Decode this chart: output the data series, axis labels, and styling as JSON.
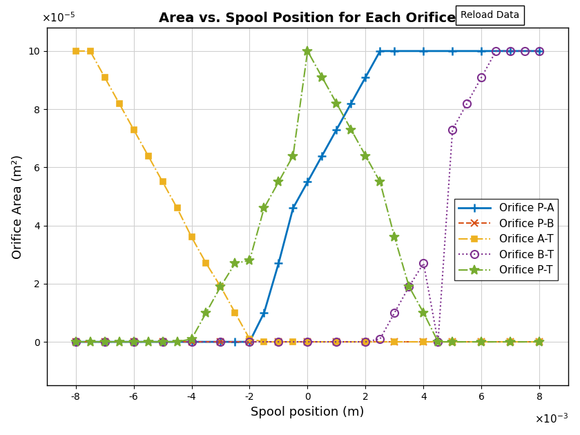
{
  "title": "Area vs. Spool Position for Each Orifice",
  "xlabel": "Spool position (m)",
  "ylabel": "Orifice Area (m²)",
  "xlim": [
    -0.009,
    0.009
  ],
  "ylim": [
    -1.5e-05,
    0.000108
  ],
  "xticks": [
    -0.008,
    -0.006,
    -0.004,
    -0.002,
    0,
    0.002,
    0.004,
    0.006,
    0.008
  ],
  "yticks": [
    0,
    2e-05,
    4e-05,
    6e-05,
    8e-05,
    0.0001
  ],
  "background_color": "#ffffff",
  "grid_color": "#d0d0d0",
  "reload_button_text": "Reload Data",
  "series": [
    {
      "label": "Orifice P-A",
      "color": "#0072BD",
      "linestyle": "-",
      "marker": "+",
      "markersize": 9,
      "markeredgewidth": 1.8,
      "linewidth": 2.0,
      "x": [
        -0.008,
        -0.007,
        -0.006,
        -0.005,
        -0.004,
        -0.003,
        -0.0025,
        -0.002,
        -0.0015,
        -0.001,
        -0.0005,
        0,
        0.0005,
        0.001,
        0.0015,
        0.002,
        0.0025,
        0.003,
        0.004,
        0.005,
        0.006,
        0.007,
        0.008
      ],
      "y": [
        0,
        0,
        0,
        0,
        0,
        0,
        0,
        0,
        1e-05,
        2.7e-05,
        4.6e-05,
        5.5e-05,
        6.4e-05,
        7.3e-05,
        8.2e-05,
        9.1e-05,
        0.0001,
        0.0001,
        0.0001,
        0.0001,
        0.0001,
        0.0001,
        0.0001
      ]
    },
    {
      "label": "Orifice P-B",
      "color": "#D95319",
      "linestyle": "--",
      "marker": "x",
      "markersize": 7,
      "markeredgewidth": 1.5,
      "linewidth": 1.5,
      "x": [
        -0.008,
        -0.007,
        -0.006,
        -0.005,
        -0.004,
        -0.003,
        -0.002,
        -0.001,
        0,
        0.001,
        0.002,
        0.003,
        0.004,
        0.005,
        0.006,
        0.007,
        0.008
      ],
      "y": [
        0,
        0,
        0,
        0,
        0,
        0,
        0,
        0,
        0,
        0,
        0,
        0,
        0,
        0,
        0,
        0,
        0
      ]
    },
    {
      "label": "Orifice A-T",
      "color": "#EDB120",
      "linestyle": "-.",
      "marker": "s",
      "markersize": 6,
      "markeredgewidth": 1.2,
      "linewidth": 1.5,
      "x": [
        -0.008,
        -0.0075,
        -0.007,
        -0.0065,
        -0.006,
        -0.0055,
        -0.005,
        -0.0045,
        -0.004,
        -0.0035,
        -0.003,
        -0.0025,
        -0.002,
        -0.0015,
        -0.001,
        -0.0005,
        0,
        0.001,
        0.002,
        0.003,
        0.004,
        0.005,
        0.006,
        0.007,
        0.008
      ],
      "y": [
        0.0001,
        0.0001,
        9.1e-05,
        8.2e-05,
        7.3e-05,
        6.4e-05,
        5.5e-05,
        4.6e-05,
        3.6e-05,
        2.7e-05,
        1.9e-05,
        1e-05,
        1e-06,
        0,
        0,
        0,
        0,
        0,
        0,
        0,
        0,
        0,
        0,
        0,
        0
      ]
    },
    {
      "label": "Orifice B-T",
      "color": "#7E2F8E",
      "linestyle": ":",
      "marker": "o",
      "markersize": 8,
      "markerfacecolor": "none",
      "markeredgewidth": 1.5,
      "linewidth": 1.5,
      "x": [
        -0.008,
        -0.007,
        -0.006,
        -0.005,
        -0.004,
        -0.003,
        -0.002,
        -0.001,
        0,
        0.001,
        0.002,
        0.0025,
        0.003,
        0.0035,
        0.004,
        0.0045,
        0.005,
        0.0055,
        0.006,
        0.0065,
        0.007,
        0.0075,
        0.008
      ],
      "y": [
        0,
        0,
        0,
        0,
        0,
        0,
        0,
        0,
        0,
        0,
        0,
        1e-06,
        1e-05,
        1.9e-05,
        2.7e-05,
        0,
        7.3e-05,
        8.2e-05,
        9.1e-05,
        0.0001,
        0.0001,
        0.0001,
        0.0001
      ]
    },
    {
      "label": "Orifice P-T",
      "color": "#77AC30",
      "linestyle": "-.",
      "marker": "*",
      "markersize": 10,
      "markeredgewidth": 1.2,
      "linewidth": 1.5,
      "x": [
        -0.008,
        -0.0075,
        -0.007,
        -0.0065,
        -0.006,
        -0.0055,
        -0.005,
        -0.0045,
        -0.004,
        -0.0035,
        -0.003,
        -0.0025,
        -0.002,
        -0.0015,
        -0.001,
        -0.0005,
        0,
        0.0005,
        0.001,
        0.0015,
        0.002,
        0.0025,
        0.003,
        0.0035,
        0.004,
        0.0045,
        0.005,
        0.006,
        0.007,
        0.008
      ],
      "y": [
        0,
        0,
        0,
        0,
        0,
        0,
        0,
        0,
        1e-06,
        1e-05,
        1.9e-05,
        2.7e-05,
        2.8e-05,
        4.6e-05,
        5.5e-05,
        6.4e-05,
        0.0001,
        9.1e-05,
        8.2e-05,
        7.3e-05,
        6.4e-05,
        5.5e-05,
        3.6e-05,
        1.9e-05,
        1e-05,
        0,
        0,
        0,
        0,
        0
      ]
    }
  ]
}
